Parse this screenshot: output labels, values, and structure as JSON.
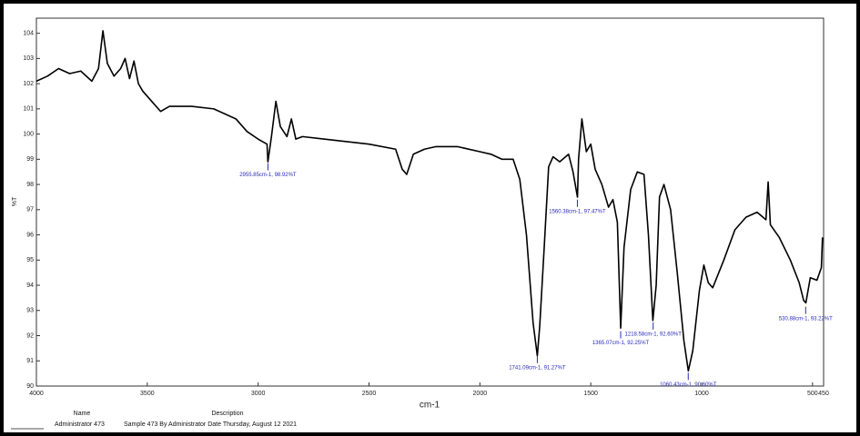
{
  "chart_data": {
    "type": "line",
    "x_label": "cm-1",
    "y_label": "%T",
    "xlim": [
      4000,
      450
    ],
    "ylim": [
      90,
      104.6
    ],
    "xticks": [
      4000,
      3500,
      3000,
      2500,
      2000,
      1500,
      1000,
      500,
      450
    ],
    "yticks": [
      90,
      91,
      92,
      93,
      94,
      95,
      96,
      97,
      98,
      99,
      100,
      101,
      102,
      103,
      104
    ],
    "series": [
      {
        "color": "#000000",
        "x": [
          4000,
          3950,
          3900,
          3850,
          3800,
          3750,
          3720,
          3700,
          3680,
          3650,
          3620,
          3600,
          3580,
          3560,
          3540,
          3520,
          3480,
          3440,
          3400,
          3300,
          3200,
          3100,
          3050,
          3000,
          2960,
          2956,
          2940,
          2920,
          2900,
          2870,
          2850,
          2830,
          2800,
          2700,
          2600,
          2500,
          2380,
          2350,
          2330,
          2300,
          2250,
          2200,
          2100,
          2000,
          1950,
          1900,
          1850,
          1820,
          1790,
          1760,
          1741,
          1730,
          1710,
          1690,
          1670,
          1640,
          1600,
          1580,
          1560,
          1555,
          1540,
          1520,
          1500,
          1480,
          1450,
          1420,
          1400,
          1380,
          1365,
          1350,
          1320,
          1290,
          1260,
          1240,
          1220,
          1205,
          1190,
          1170,
          1140,
          1110,
          1080,
          1060,
          1040,
          1010,
          990,
          970,
          950,
          900,
          850,
          800,
          750,
          710,
          700,
          690,
          650,
          600,
          560,
          540,
          530,
          510,
          480,
          460,
          455
        ],
        "values": [
          102.1,
          102.3,
          102.6,
          102.4,
          102.5,
          102.1,
          102.6,
          104.1,
          102.8,
          102.3,
          102.6,
          103.0,
          102.2,
          102.9,
          102.0,
          101.7,
          101.3,
          100.9,
          101.1,
          101.1,
          101.0,
          100.6,
          100.1,
          99.8,
          99.6,
          98.9,
          99.9,
          101.3,
          100.3,
          99.9,
          100.6,
          99.8,
          99.9,
          99.8,
          99.7,
          99.6,
          99.4,
          98.6,
          98.4,
          99.2,
          99.4,
          99.5,
          99.5,
          99.3,
          99.2,
          99.0,
          99.0,
          98.2,
          96.0,
          92.5,
          91.2,
          92.4,
          95.5,
          98.7,
          99.1,
          98.9,
          99.2,
          98.5,
          97.5,
          99.0,
          100.6,
          99.3,
          99.6,
          98.6,
          98.0,
          97.1,
          97.4,
          96.5,
          92.3,
          95.5,
          97.8,
          98.5,
          98.4,
          96.0,
          92.6,
          94.0,
          97.5,
          98.0,
          97.0,
          94.5,
          91.8,
          90.6,
          91.4,
          93.8,
          94.8,
          94.1,
          93.9,
          95.0,
          96.2,
          96.7,
          96.9,
          96.6,
          98.1,
          96.4,
          95.9,
          95.0,
          94.1,
          93.4,
          93.3,
          94.3,
          94.2,
          94.7,
          95.9
        ]
      }
    ],
    "annotations": [
      {
        "text": "2955.85cm-1, 98.92%T",
        "x": 2955.85,
        "y": 98.92
      },
      {
        "text": "1560.38cm-1, 97.47%T",
        "x": 1560.38,
        "y": 97.47
      },
      {
        "text": "1741.09cm-1, 91.27%T",
        "x": 1741.09,
        "y": 91.27
      },
      {
        "text": "1365.07cm-1, 92.25%T",
        "x": 1365.07,
        "y": 92.25
      },
      {
        "text": "1218.58cm-1, 92.60%T",
        "x": 1218.58,
        "y": 92.6
      },
      {
        "text": "1060.43cm-1, 90.60%T",
        "x": 1060.43,
        "y": 90.6
      },
      {
        "text": "530.88cm-1, 93.22%T",
        "x": 530.88,
        "y": 93.22
      }
    ]
  },
  "footer": {
    "name_header": "Name",
    "description_header": "Description",
    "name": "Administrator 473",
    "description": "Sample 473 By Administrator Date Thursday, August 12 2021"
  }
}
